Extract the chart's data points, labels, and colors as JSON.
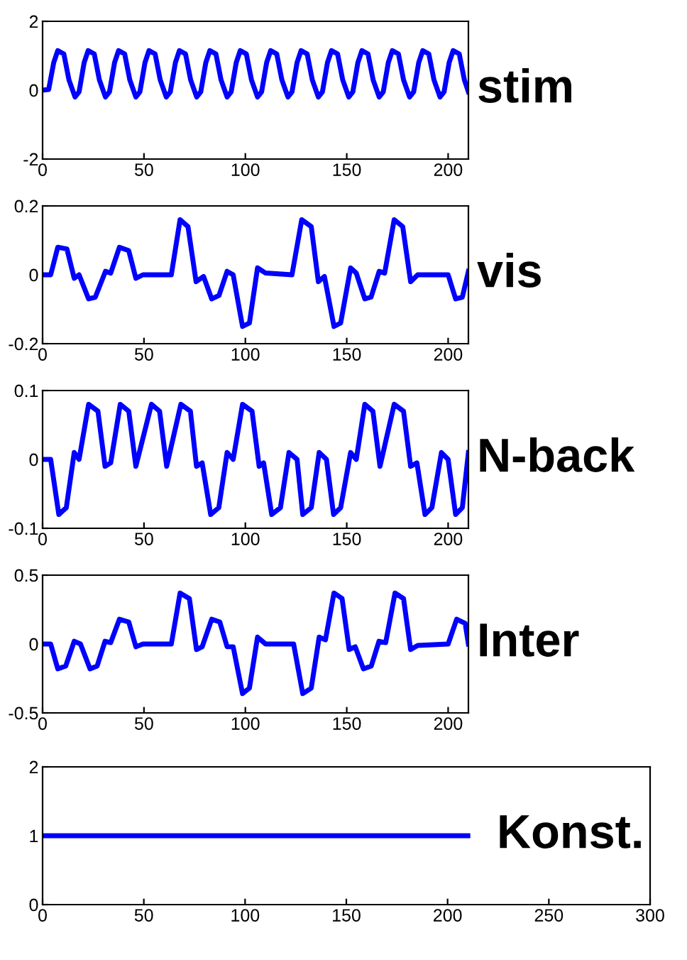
{
  "chart_data": [
    {
      "type": "line",
      "title": "stim",
      "xlim": [
        0,
        210
      ],
      "xticks": [
        0,
        50,
        100,
        150,
        200
      ],
      "ylim": [
        -2,
        2
      ],
      "yticks": [
        -2,
        0,
        2
      ],
      "grid": false,
      "legend": false,
      "series": [
        {
          "color": "#0000ff",
          "x": [
            0,
            3,
            5.5,
            7.5,
            10.5,
            13,
            16,
            18,
            20.5,
            22.5,
            25.5,
            28,
            31,
            33,
            35.5,
            37.5,
            40.5,
            43,
            46,
            48,
            50.5,
            52.5,
            55.5,
            58,
            61,
            63,
            65.5,
            67.5,
            70.5,
            73,
            76,
            78,
            80.5,
            82.5,
            85.5,
            88,
            91,
            93,
            95.5,
            97.5,
            100.5,
            103,
            106,
            108,
            110.5,
            112.5,
            115.5,
            118,
            121,
            123,
            125.5,
            127.5,
            130.5,
            133,
            136,
            138,
            140.5,
            142.5,
            145.5,
            148,
            151,
            153,
            155.5,
            157.5,
            160.5,
            163,
            166,
            168,
            170.5,
            172.5,
            175.5,
            178,
            181,
            183,
            185.5,
            187.5,
            190.5,
            193,
            196,
            198,
            200.5,
            202.5,
            205.5,
            208,
            210
          ],
          "values": [
            0,
            0.02,
            0.8,
            1.15,
            1.05,
            0.3,
            -0.2,
            -0.05,
            0.8,
            1.15,
            1.05,
            0.3,
            -0.2,
            -0.05,
            0.8,
            1.15,
            1.05,
            0.3,
            -0.2,
            -0.05,
            0.8,
            1.15,
            1.05,
            0.3,
            -0.2,
            -0.05,
            0.8,
            1.15,
            1.05,
            0.3,
            -0.2,
            -0.05,
            0.8,
            1.15,
            1.05,
            0.3,
            -0.2,
            -0.05,
            0.8,
            1.15,
            1.05,
            0.3,
            -0.2,
            -0.05,
            0.8,
            1.15,
            1.05,
            0.3,
            -0.2,
            -0.05,
            0.8,
            1.15,
            1.05,
            0.3,
            -0.2,
            -0.05,
            0.8,
            1.15,
            1.05,
            0.3,
            -0.2,
            -0.05,
            0.8,
            1.15,
            1.05,
            0.3,
            -0.2,
            -0.05,
            0.8,
            1.15,
            1.05,
            0.3,
            -0.2,
            -0.05,
            0.8,
            1.15,
            1.05,
            0.3,
            -0.2,
            -0.05,
            0.8,
            1.15,
            1.05,
            0.3,
            -0.05
          ]
        }
      ]
    },
    {
      "type": "line",
      "title": "vis",
      "xlim": [
        0,
        210
      ],
      "xticks": [
        0,
        50,
        100,
        150,
        200
      ],
      "ylim": [
        -0.2,
        0.2
      ],
      "yticks": [
        -0.2,
        0,
        0.2
      ],
      "grid": false,
      "legend": false,
      "series": [
        {
          "color": "#0000ff",
          "x": [
            0,
            4,
            7.5,
            12,
            15.6,
            18,
            22.7,
            26,
            31,
            33.6,
            37.9,
            42.5,
            46,
            49.5,
            63.5,
            67.8,
            71.7,
            75.7,
            79.4,
            83.4,
            87,
            91,
            94,
            98.6,
            102,
            106,
            110,
            123,
            127.8,
            132.5,
            136,
            139,
            143.7,
            147,
            151.9,
            154.7,
            158.9,
            162,
            166,
            168.7,
            173.4,
            177.6,
            181.5,
            185,
            200,
            203.7,
            207,
            210
          ],
          "values": [
            0,
            0,
            0.08,
            0.075,
            -0.01,
            0,
            -0.07,
            -0.065,
            0.01,
            0.005,
            0.08,
            0.07,
            -0.01,
            0,
            0,
            0.16,
            0.14,
            -0.02,
            -0.005,
            -0.07,
            -0.06,
            0.01,
            0,
            -0.15,
            -0.14,
            0.02,
            0.005,
            0,
            0.16,
            0.14,
            -0.02,
            -0.005,
            -0.15,
            -0.14,
            0.02,
            0.005,
            -0.07,
            -0.065,
            0.01,
            0.005,
            0.16,
            0.14,
            -0.02,
            0,
            0,
            -0.07,
            -0.065,
            0.01
          ]
        }
      ]
    },
    {
      "type": "line",
      "title": "N-back",
      "xlim": [
        0,
        210
      ],
      "xticks": [
        0,
        50,
        100,
        150,
        200
      ],
      "ylim": [
        -0.1,
        0.1
      ],
      "yticks": [
        -0.1,
        0,
        0.1
      ],
      "grid": false,
      "legend": false,
      "series": [
        {
          "color": "#0000ff",
          "x": [
            0,
            4,
            8,
            11.7,
            15.6,
            18,
            22.7,
            27.3,
            30.8,
            33.6,
            38.3,
            42.5,
            46,
            53.7,
            57.7,
            61.2,
            68.2,
            72.9,
            75.9,
            78.7,
            82.9,
            86.9,
            91,
            94,
            98.6,
            103.3,
            106.8,
            109,
            113,
            117.3,
            121.5,
            125.5,
            128.3,
            132.5,
            136.4,
            140,
            143.5,
            147,
            151.9,
            154.7,
            158.9,
            162.9,
            166.4,
            173.4,
            178,
            181.5,
            184.6,
            188.6,
            192,
            196.7,
            200,
            203.7,
            207,
            210
          ],
          "values": [
            0,
            0,
            -0.08,
            -0.07,
            0.01,
            0,
            0.08,
            0.07,
            -0.01,
            -0.005,
            0.08,
            0.07,
            -0.01,
            0.08,
            0.07,
            -0.01,
            0.08,
            0.07,
            -0.01,
            -0.005,
            -0.08,
            -0.07,
            0.01,
            0,
            0.08,
            0.07,
            -0.01,
            -0.005,
            -0.08,
            -0.07,
            0.01,
            0,
            -0.08,
            -0.07,
            0.01,
            0,
            -0.08,
            -0.07,
            0.01,
            0,
            0.08,
            0.07,
            -0.01,
            0.08,
            0.07,
            -0.01,
            -0.005,
            -0.08,
            -0.07,
            0.01,
            0,
            -0.08,
            -0.07,
            0.01
          ]
        }
      ]
    },
    {
      "type": "line",
      "title": "Inter",
      "xlim": [
        0,
        210
      ],
      "xticks": [
        0,
        50,
        100,
        150,
        200
      ],
      "ylim": [
        -0.5,
        0.5
      ],
      "yticks": [
        -0.5,
        0,
        0.5
      ],
      "grid": false,
      "legend": false,
      "series": [
        {
          "color": "#0000ff",
          "x": [
            0,
            4,
            7.5,
            11.4,
            15.6,
            18.7,
            23.4,
            26.9,
            30.8,
            33.6,
            37.9,
            42.5,
            46,
            49.5,
            63.5,
            67.8,
            72.4,
            75.9,
            78.7,
            83.4,
            87.4,
            91,
            94,
            98.6,
            102,
            106,
            110,
            123.8,
            128.3,
            132.5,
            136.4,
            139.5,
            143.7,
            147.7,
            151.2,
            154.2,
            158.2,
            162.1,
            165.9,
            169.2,
            173.8,
            178,
            181.5,
            185,
            200,
            204.2,
            208.4,
            210
          ],
          "values": [
            0,
            0,
            -0.18,
            -0.16,
            0.02,
            0,
            -0.18,
            -0.16,
            0.02,
            0.01,
            0.18,
            0.16,
            -0.02,
            0,
            0,
            0.37,
            0.33,
            -0.04,
            -0.02,
            0.18,
            0.16,
            -0.02,
            -0.02,
            -0.36,
            -0.32,
            0.05,
            0,
            0,
            -0.36,
            -0.32,
            0.05,
            0.03,
            0.37,
            0.33,
            -0.04,
            -0.02,
            -0.18,
            -0.16,
            0.02,
            0.01,
            0.37,
            0.33,
            -0.04,
            -0.01,
            0,
            0.18,
            0.15,
            0
          ]
        }
      ]
    },
    {
      "type": "line",
      "title": "Konst.",
      "xlim": [
        0,
        300
      ],
      "xticks": [
        0,
        50,
        100,
        150,
        200,
        250,
        300
      ],
      "ylim": [
        0,
        2
      ],
      "yticks": [
        0,
        1,
        2
      ],
      "grid": false,
      "legend": false,
      "series": [
        {
          "color": "#0000ff",
          "x": [
            0,
            210
          ],
          "values": [
            1,
            1
          ]
        }
      ]
    }
  ]
}
